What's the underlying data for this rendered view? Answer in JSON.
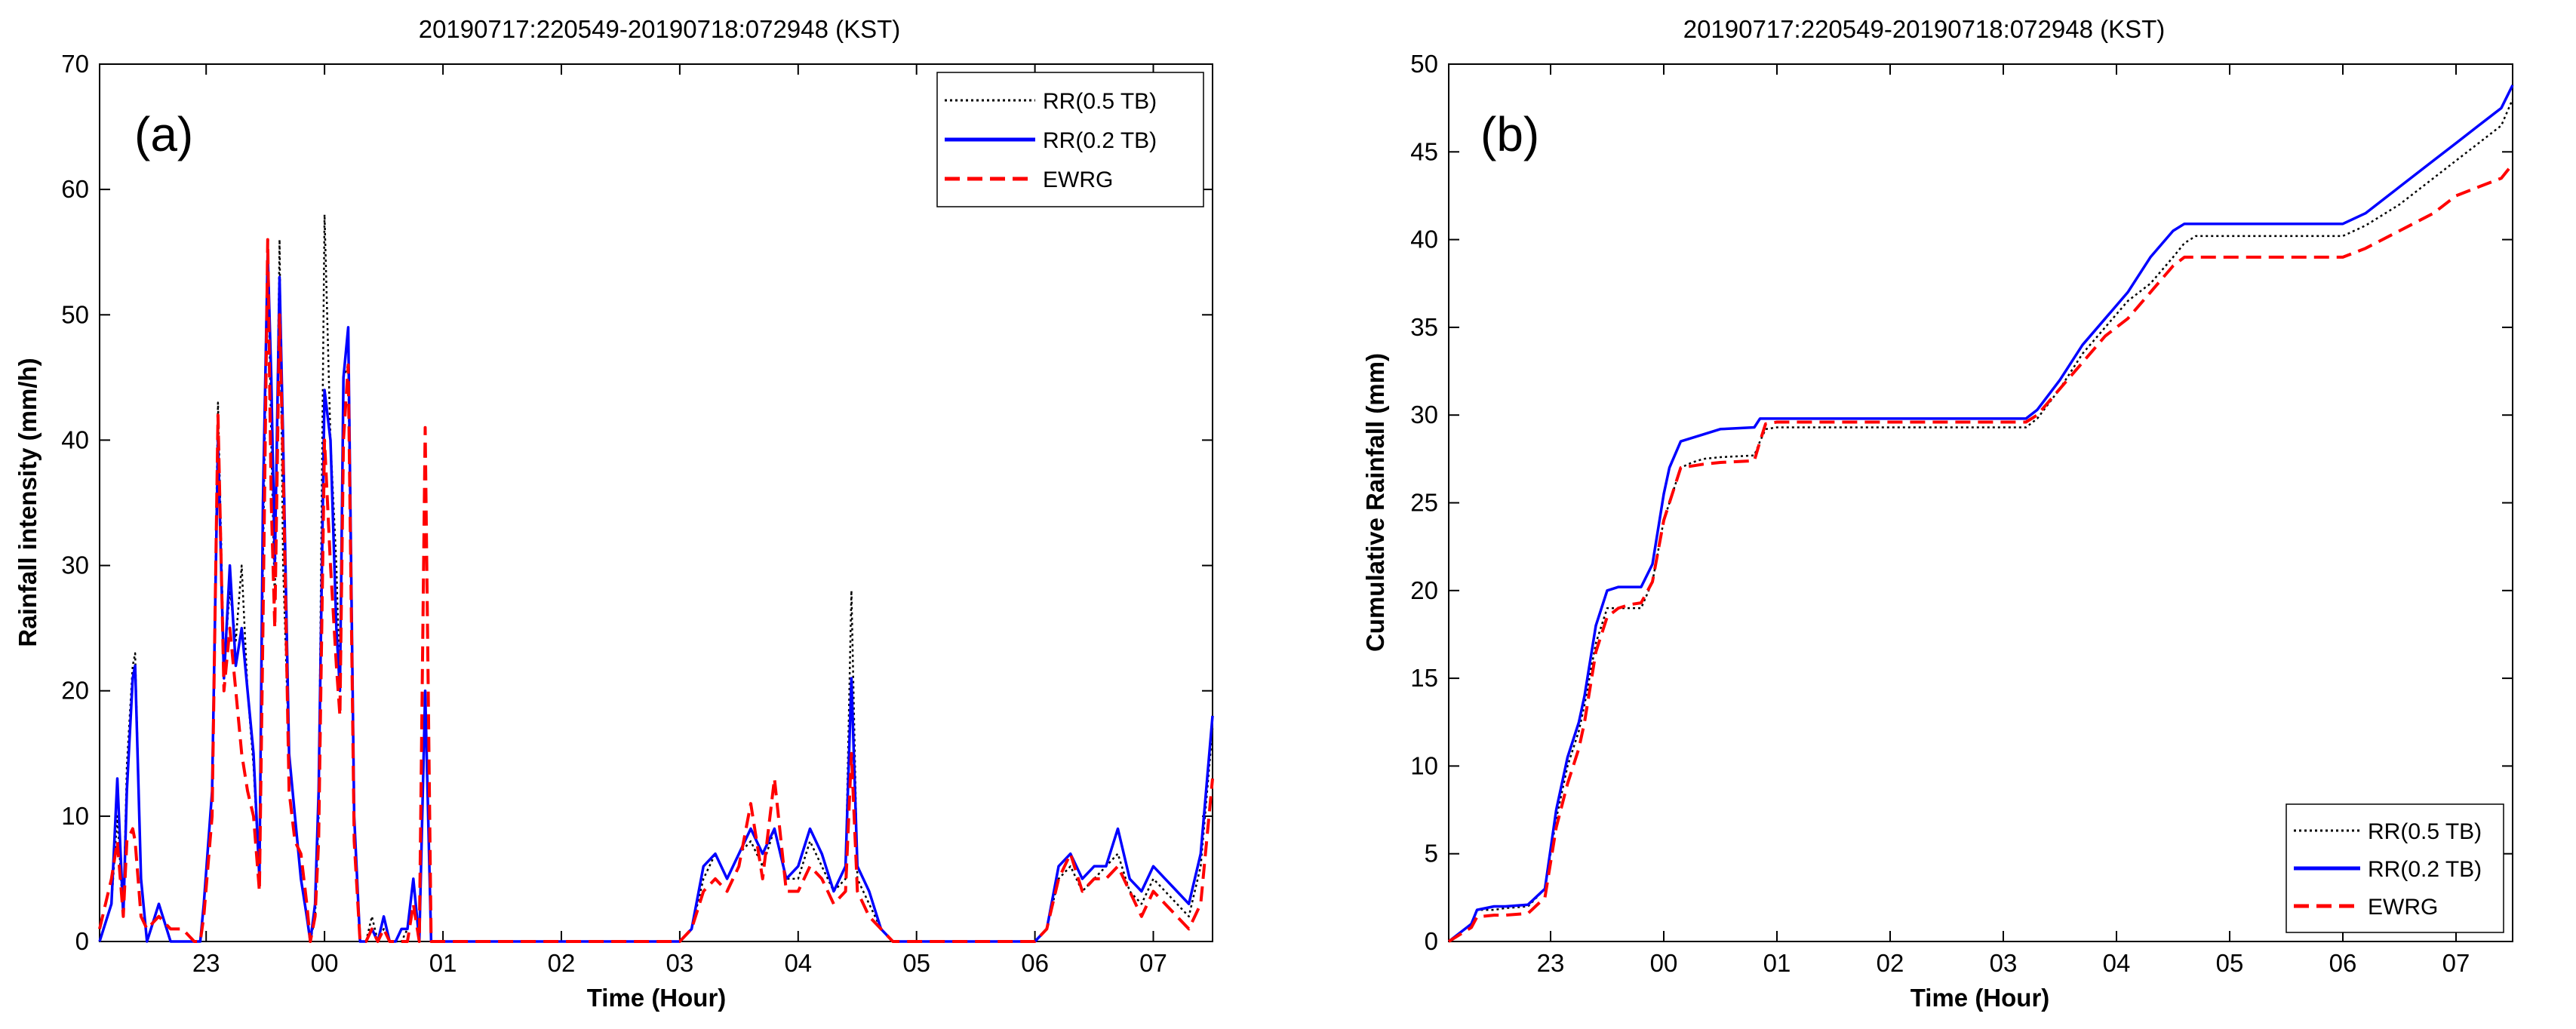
{
  "chart_data": [
    {
      "type": "line",
      "panel": "(a)",
      "title": "20190717:220549-20190718:072948 (KST)",
      "xlabel": "Time (Hour)",
      "ylabel": "Rainfall intensity (mm/h)",
      "xlim": [
        22.1,
        31.5
      ],
      "ylim": [
        0,
        70
      ],
      "xticks": [
        23,
        24,
        25,
        26,
        27,
        28,
        29,
        30,
        31
      ],
      "xticklabels": [
        "23",
        "00",
        "01",
        "02",
        "03",
        "04",
        "05",
        "06",
        "07"
      ],
      "yticks": [
        0,
        10,
        20,
        30,
        40,
        50,
        60,
        70
      ],
      "yticklabels": [
        "0",
        "10",
        "20",
        "30",
        "40",
        "50",
        "60",
        "70"
      ],
      "grid": false,
      "legend_position": "top-right",
      "series": [
        {
          "name": "RR(0.5 TB)",
          "color": "#000000",
          "style": "dotted",
          "x": [
            22.1,
            22.2,
            22.25,
            22.3,
            22.33,
            22.38,
            22.4,
            22.45,
            22.5,
            22.6,
            22.7,
            22.8,
            22.9,
            22.95,
            22.98,
            23.05,
            23.1,
            23.15,
            23.2,
            23.25,
            23.3,
            23.35,
            23.4,
            23.45,
            23.48,
            23.52,
            23.55,
            23.58,
            23.62,
            23.65,
            23.7,
            23.75,
            23.8,
            23.85,
            23.88,
            23.92,
            23.95,
            24.0,
            24.05,
            24.1,
            24.13,
            24.16,
            24.2,
            24.25,
            24.3,
            24.35,
            24.4,
            24.45,
            24.5,
            24.55,
            24.6,
            24.65,
            24.7,
            24.75,
            24.8,
            24.85,
            24.9,
            24.95,
            25.0,
            26.0,
            27.0,
            27.1,
            27.2,
            27.3,
            27.4,
            27.5,
            27.6,
            27.7,
            27.8,
            27.9,
            28.0,
            28.1,
            28.2,
            28.3,
            28.4,
            28.45,
            28.5,
            28.6,
            28.7,
            28.8,
            29.0,
            30.0,
            30.1,
            30.2,
            30.3,
            30.4,
            30.5,
            30.6,
            30.7,
            30.8,
            30.9,
            31.0,
            31.1,
            31.2,
            31.3,
            31.4,
            31.5
          ],
          "y": [
            0,
            3,
            10,
            2,
            14,
            22,
            23,
            5,
            0,
            3,
            0,
            0,
            0,
            0,
            3,
            12,
            43,
            22,
            28,
            24,
            30,
            20,
            14,
            5,
            30,
            56,
            40,
            27,
            56,
            30,
            15,
            10,
            5,
            2,
            0,
            2,
            10,
            58,
            40,
            30,
            20,
            45,
            46,
            10,
            0,
            0,
            2,
            0,
            1,
            0,
            0,
            0,
            1,
            5,
            0,
            20,
            0,
            0,
            0,
            0,
            0,
            1,
            5,
            7,
            5,
            7,
            8,
            6,
            9,
            5,
            5,
            8,
            6,
            4,
            5,
            28,
            5,
            3,
            1,
            0,
            0,
            0,
            1,
            5,
            6,
            4,
            5,
            6,
            7,
            4,
            3,
            5,
            4,
            3,
            2,
            6,
            17
          ]
        },
        {
          "name": "RR(0.2 TB)",
          "color": "#0000ff",
          "style": "solid",
          "x": [
            22.1,
            22.2,
            22.25,
            22.3,
            22.33,
            22.38,
            22.4,
            22.45,
            22.5,
            22.6,
            22.7,
            22.8,
            22.9,
            22.95,
            22.98,
            23.05,
            23.1,
            23.15,
            23.2,
            23.25,
            23.3,
            23.35,
            23.4,
            23.45,
            23.48,
            23.52,
            23.55,
            23.58,
            23.62,
            23.65,
            23.7,
            23.75,
            23.8,
            23.85,
            23.88,
            23.92,
            23.95,
            24.0,
            24.05,
            24.1,
            24.13,
            24.16,
            24.2,
            24.25,
            24.3,
            24.35,
            24.4,
            24.45,
            24.5,
            24.55,
            24.6,
            24.65,
            24.7,
            24.75,
            24.8,
            24.85,
            24.9,
            24.95,
            25.0,
            26.0,
            27.0,
            27.1,
            27.2,
            27.3,
            27.4,
            27.5,
            27.6,
            27.7,
            27.8,
            27.9,
            28.0,
            28.1,
            28.2,
            28.3,
            28.4,
            28.45,
            28.5,
            28.6,
            28.7,
            28.8,
            29.0,
            30.0,
            30.1,
            30.2,
            30.3,
            30.4,
            30.5,
            30.6,
            30.7,
            30.8,
            30.9,
            31.0,
            31.1,
            31.2,
            31.3,
            31.4,
            31.5
          ],
          "y": [
            0,
            3,
            13,
            2,
            12,
            21,
            22,
            5,
            0,
            3,
            0,
            0,
            0,
            0,
            3,
            12,
            40,
            21,
            30,
            22,
            25,
            20,
            15,
            5,
            35,
            55,
            45,
            30,
            53,
            40,
            15,
            10,
            5,
            2,
            0,
            3,
            12,
            44,
            40,
            25,
            20,
            45,
            49,
            10,
            0,
            0,
            1,
            0,
            2,
            0,
            0,
            1,
            1,
            5,
            0,
            20,
            0,
            0,
            0,
            0,
            0,
            1,
            6,
            7,
            5,
            7,
            9,
            7,
            9,
            5,
            6,
            9,
            7,
            4,
            6,
            21,
            6,
            4,
            1,
            0,
            0,
            0,
            1,
            6,
            7,
            5,
            6,
            6,
            9,
            5,
            4,
            6,
            5,
            4,
            3,
            7,
            18
          ]
        },
        {
          "name": "EWRG",
          "color": "#ff0000",
          "style": "dashed",
          "x": [
            22.1,
            22.2,
            22.25,
            22.3,
            22.33,
            22.38,
            22.4,
            22.45,
            22.5,
            22.6,
            22.7,
            22.8,
            22.9,
            22.95,
            22.98,
            23.05,
            23.1,
            23.15,
            23.2,
            23.25,
            23.3,
            23.35,
            23.4,
            23.45,
            23.48,
            23.52,
            23.55,
            23.58,
            23.62,
            23.65,
            23.7,
            23.75,
            23.8,
            23.85,
            23.88,
            23.92,
            23.95,
            24.0,
            24.05,
            24.1,
            24.13,
            24.16,
            24.2,
            24.25,
            24.3,
            24.35,
            24.4,
            24.45,
            24.5,
            24.55,
            24.6,
            24.65,
            24.7,
            24.75,
            24.8,
            24.85,
            24.9,
            24.95,
            25.0,
            26.0,
            27.0,
            27.1,
            27.2,
            27.3,
            27.4,
            27.5,
            27.6,
            27.7,
            27.8,
            27.9,
            28.0,
            28.1,
            28.2,
            28.3,
            28.4,
            28.45,
            28.5,
            28.6,
            28.7,
            28.8,
            29.0,
            30.0,
            30.1,
            30.2,
            30.3,
            30.4,
            30.5,
            30.6,
            30.7,
            30.8,
            30.9,
            31.0,
            31.1,
            31.2,
            31.3,
            31.4,
            31.5
          ],
          "y": [
            1,
            5,
            8,
            2,
            8,
            9,
            8,
            2,
            1,
            2,
            1,
            1,
            0,
            0,
            2,
            10,
            42,
            20,
            25,
            20,
            15,
            12,
            10,
            4,
            25,
            56,
            35,
            25,
            50,
            38,
            12,
            8,
            7,
            3,
            0,
            2,
            8,
            40,
            30,
            22,
            18,
            40,
            46,
            8,
            0,
            0,
            1,
            0,
            1,
            0,
            0,
            0,
            0,
            3,
            0,
            41,
            0,
            0,
            0,
            0,
            0,
            1,
            4,
            5,
            4,
            6,
            11,
            5,
            13,
            4,
            4,
            6,
            5,
            3,
            4,
            15,
            4,
            2,
            1,
            0,
            0,
            0,
            1,
            5,
            7,
            4,
            5,
            5,
            6,
            4,
            2,
            4,
            3,
            2,
            1,
            3,
            13
          ]
        }
      ]
    },
    {
      "type": "line",
      "panel": "(b)",
      "title": "20190717:220549-20190718:072948 (KST)",
      "xlabel": "Time (Hour)",
      "ylabel": "Cumulative Rainfall (mm)",
      "xlim": [
        22.1,
        31.5
      ],
      "ylim": [
        0,
        50
      ],
      "xticks": [
        23,
        24,
        25,
        26,
        27,
        28,
        29,
        30,
        31
      ],
      "xticklabels": [
        "23",
        "00",
        "01",
        "02",
        "03",
        "04",
        "05",
        "06",
        "07"
      ],
      "yticks": [
        0,
        5,
        10,
        15,
        20,
        25,
        30,
        35,
        40,
        45,
        50
      ],
      "yticklabels": [
        "0",
        "5",
        "10",
        "15",
        "20",
        "25",
        "30",
        "35",
        "40",
        "45",
        "50"
      ],
      "grid": false,
      "legend_position": "bottom-right",
      "series": [
        {
          "name": "RR(0.5 TB)",
          "color": "#000000",
          "style": "dotted",
          "x": [
            22.1,
            22.3,
            22.35,
            22.5,
            22.6,
            22.8,
            22.95,
            23.05,
            23.15,
            23.25,
            23.3,
            23.4,
            23.5,
            23.6,
            23.7,
            23.8,
            23.9,
            24.0,
            24.05,
            24.15,
            24.25,
            24.35,
            24.5,
            24.8,
            24.85,
            24.9,
            25.0,
            25.5,
            26.0,
            26.5,
            27.0,
            27.2,
            27.3,
            27.5,
            27.7,
            27.9,
            28.1,
            28.3,
            28.5,
            28.6,
            28.7,
            29.0,
            29.5,
            30.0,
            30.2,
            30.5,
            30.8,
            31.0,
            31.2,
            31.4,
            31.5
          ],
          "y": [
            0,
            1,
            1.8,
            1.8,
            1.9,
            2.0,
            3.0,
            7.0,
            10.0,
            12.0,
            13.5,
            17.0,
            19.0,
            19.0,
            19.0,
            19.0,
            20.5,
            24.0,
            25.0,
            27.0,
            27.3,
            27.5,
            27.6,
            27.7,
            28.5,
            29.2,
            29.3,
            29.3,
            29.3,
            29.3,
            29.3,
            29.3,
            29.8,
            31.5,
            33.5,
            35.0,
            36.5,
            37.5,
            39.0,
            39.8,
            40.2,
            40.2,
            40.2,
            40.2,
            40.8,
            42.0,
            43.5,
            44.5,
            45.5,
            46.5,
            48.0
          ]
        },
        {
          "name": "RR(0.2 TB)",
          "color": "#0000ff",
          "style": "solid",
          "x": [
            22.1,
            22.3,
            22.35,
            22.5,
            22.6,
            22.8,
            22.95,
            23.05,
            23.15,
            23.25,
            23.3,
            23.4,
            23.5,
            23.6,
            23.7,
            23.8,
            23.9,
            24.0,
            24.05,
            24.15,
            24.25,
            24.35,
            24.5,
            24.8,
            24.85,
            24.9,
            25.0,
            25.5,
            26.0,
            26.5,
            27.0,
            27.2,
            27.3,
            27.5,
            27.7,
            27.9,
            28.1,
            28.3,
            28.5,
            28.6,
            28.7,
            29.0,
            29.5,
            30.0,
            30.2,
            30.5,
            30.8,
            31.0,
            31.2,
            31.4,
            31.5
          ],
          "y": [
            0,
            1,
            1.8,
            2.0,
            2.0,
            2.1,
            3.0,
            7.5,
            10.5,
            12.5,
            14.0,
            18.0,
            20.0,
            20.2,
            20.2,
            20.2,
            21.5,
            25.5,
            27.0,
            28.5,
            28.7,
            28.9,
            29.2,
            29.3,
            29.8,
            29.8,
            29.8,
            29.8,
            29.8,
            29.8,
            29.8,
            29.8,
            30.3,
            32.0,
            34.0,
            35.5,
            37.0,
            39.0,
            40.5,
            40.9,
            40.9,
            40.9,
            40.9,
            40.9,
            41.5,
            43.0,
            44.5,
            45.5,
            46.5,
            47.5,
            48.8
          ]
        },
        {
          "name": "EWRG",
          "color": "#ff0000",
          "style": "dashed",
          "x": [
            22.1,
            22.3,
            22.35,
            22.5,
            22.6,
            22.8,
            22.95,
            23.05,
            23.15,
            23.25,
            23.3,
            23.4,
            23.5,
            23.6,
            23.7,
            23.8,
            23.9,
            24.0,
            24.05,
            24.15,
            24.25,
            24.35,
            24.5,
            24.8,
            24.85,
            24.9,
            25.0,
            25.5,
            26.0,
            26.5,
            27.0,
            27.2,
            27.3,
            27.5,
            27.7,
            27.9,
            28.1,
            28.3,
            28.5,
            28.6,
            28.7,
            29.0,
            29.5,
            30.0,
            30.2,
            30.5,
            30.8,
            31.0,
            31.2,
            31.4,
            31.5
          ],
          "y": [
            0,
            0.8,
            1.4,
            1.5,
            1.5,
            1.6,
            2.5,
            6.5,
            9.0,
            11.0,
            12.5,
            16.5,
            18.5,
            19.0,
            19.2,
            19.3,
            20.5,
            24.0,
            25.0,
            27.0,
            27.1,
            27.2,
            27.3,
            27.4,
            28.5,
            29.5,
            29.6,
            29.6,
            29.6,
            29.6,
            29.6,
            29.6,
            30.0,
            31.5,
            33.0,
            34.5,
            35.5,
            37.0,
            38.5,
            39.0,
            39.0,
            39.0,
            39.0,
            39.0,
            39.5,
            40.5,
            41.5,
            42.5,
            43.0,
            43.5,
            44.3
          ]
        }
      ]
    }
  ]
}
